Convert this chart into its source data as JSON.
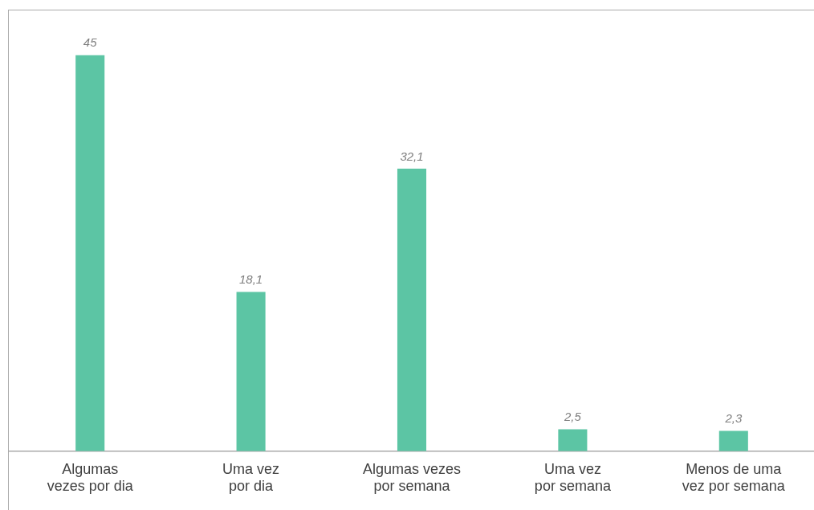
{
  "chart_data": {
    "type": "bar",
    "categories": [
      "Algumas\nvezes por dia",
      "Uma vez\npor dia",
      "Algumas vezes\npor semana",
      "Uma vez\npor semana",
      "Menos de uma\nvez por semana"
    ],
    "values": [
      45,
      18.1,
      32.1,
      2.5,
      2.3
    ],
    "value_labels": [
      "45",
      "18,1",
      "32,1",
      "2,5",
      "2,3"
    ],
    "color": "#5cc5a4",
    "grid": false,
    "legend": false
  }
}
